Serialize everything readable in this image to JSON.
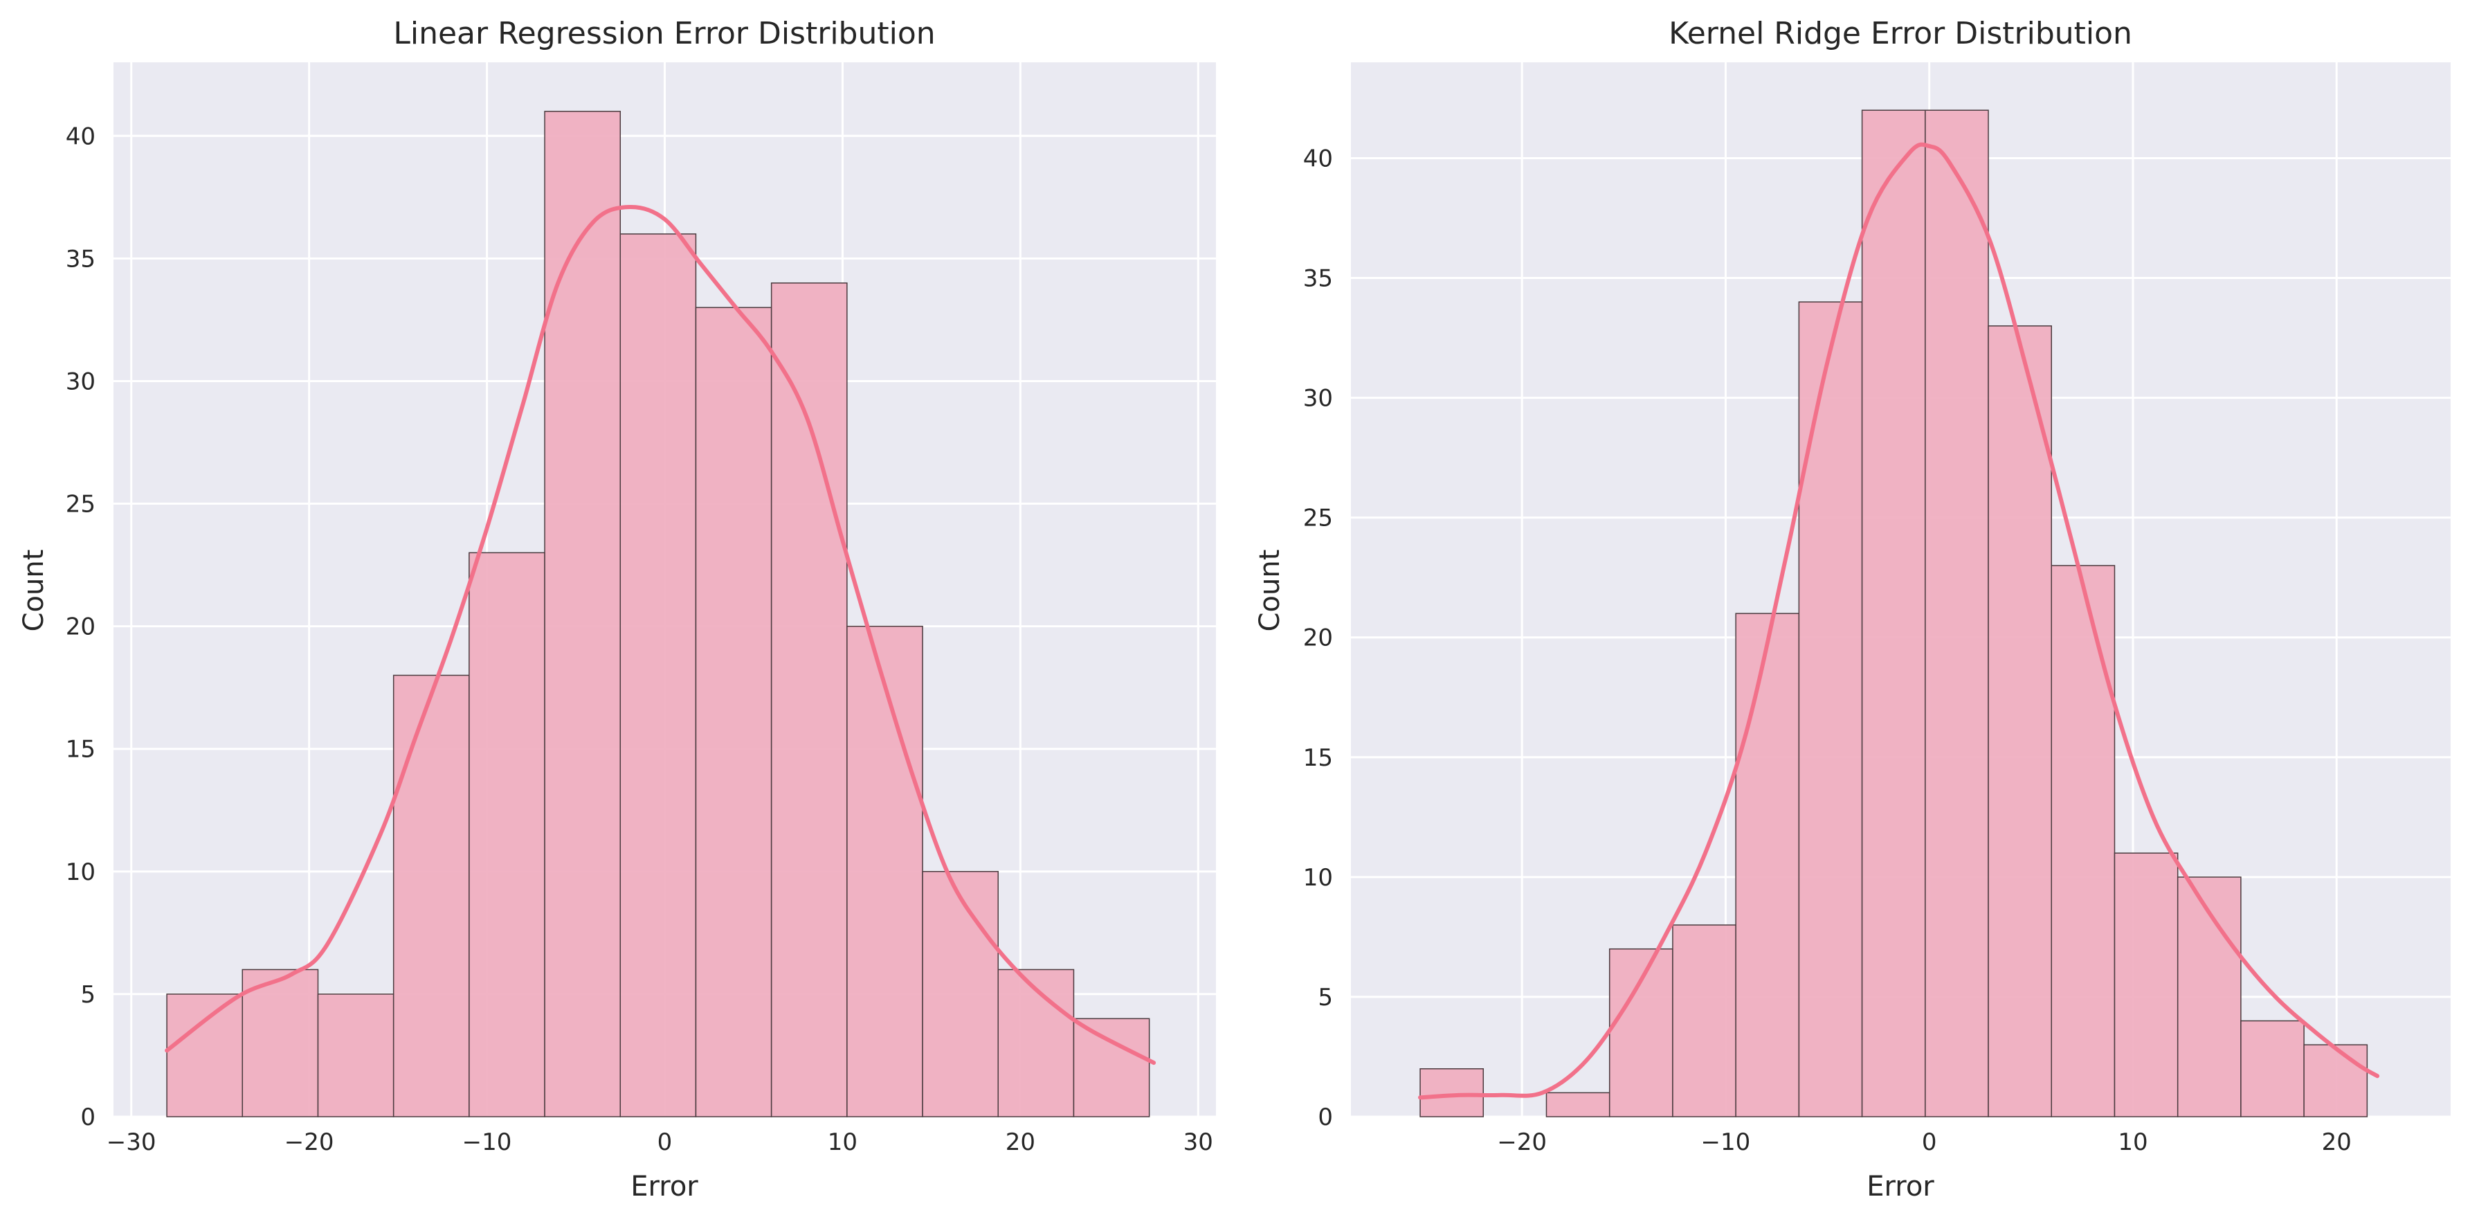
{
  "chart_data": [
    {
      "type": "bar",
      "subtype": "histogram_with_kde",
      "title": "Linear Regression Error Distribution",
      "xlabel": "Error",
      "ylabel": "Count",
      "xlim": [
        -31,
        31
      ],
      "ylim": [
        0,
        43
      ],
      "xticks": [
        -30,
        -20,
        -10,
        0,
        10,
        20,
        30
      ],
      "xtick_labels": [
        "−30",
        "−20",
        "−10",
        "0",
        "10",
        "20",
        "30"
      ],
      "yticks": [
        0,
        5,
        10,
        15,
        20,
        25,
        30,
        35,
        40
      ],
      "ytick_labels": [
        "0",
        "5",
        "10",
        "15",
        "20",
        "25",
        "30",
        "35",
        "40"
      ],
      "bin_edges": [
        -28,
        -23.75,
        -19.5,
        -15.25,
        -11,
        -6.75,
        -2.5,
        1.75,
        6,
        10.25,
        14.5,
        18.75,
        23,
        27.25
      ],
      "counts": [
        5,
        6,
        5,
        18,
        23,
        41,
        36,
        33,
        34,
        20,
        10,
        6,
        4
      ],
      "kde": {
        "x": [
          -28,
          -24,
          -21,
          -19,
          -16,
          -14,
          -12,
          -10,
          -8,
          -6,
          -4,
          -2,
          0,
          2,
          4,
          6,
          8,
          10,
          12,
          14,
          16,
          18,
          20,
          22,
          24,
          27.5
        ],
        "y": [
          2.7,
          4.9,
          5.8,
          7.0,
          11.5,
          15.5,
          19.5,
          24.0,
          29.0,
          34.0,
          36.5,
          37.1,
          36.6,
          34.8,
          33.0,
          31.2,
          28.5,
          23.5,
          18.5,
          13.8,
          9.8,
          7.5,
          5.8,
          4.5,
          3.5,
          2.2
        ]
      },
      "grid": true,
      "colors": {
        "bar_fill": "#f0adbf",
        "bar_edge": "#4a3a3e",
        "kde_line": "#f2718a",
        "axes_bg": "#eaeaf2",
        "grid": "#ffffff"
      }
    },
    {
      "type": "bar",
      "subtype": "histogram_with_kde",
      "title": "Kernel Ridge Error Distribution",
      "xlabel": "Error",
      "ylabel": "Count",
      "xlim": [
        -28.4,
        25.6
      ],
      "ylim": [
        0,
        44
      ],
      "xticks": [
        -20,
        -10,
        0,
        10,
        20
      ],
      "xtick_labels": [
        "−20",
        "−10",
        "0",
        "10",
        "20"
      ],
      "yticks": [
        0,
        5,
        10,
        15,
        20,
        25,
        30,
        35,
        40
      ],
      "ytick_labels": [
        "0",
        "5",
        "10",
        "15",
        "20",
        "25",
        "30",
        "35",
        "40"
      ],
      "bin_edges": [
        -25,
        -21.9,
        -18.8,
        -15.7,
        -12.6,
        -9.5,
        -6.4,
        -3.3,
        -0.2,
        2.9,
        6.0,
        9.1,
        12.2,
        15.3,
        18.4,
        21.5
      ],
      "counts": [
        2,
        0,
        1,
        7,
        8,
        21,
        34,
        42,
        42,
        33,
        23,
        11,
        10,
        4,
        3
      ],
      "kde": {
        "x": [
          -25,
          -23,
          -21,
          -19,
          -17,
          -15,
          -13,
          -11,
          -9,
          -7,
          -5,
          -3,
          -1,
          0,
          1,
          3,
          5,
          7,
          9,
          11,
          13,
          15,
          17,
          19,
          21,
          22
        ],
        "y": [
          0.8,
          0.9,
          0.9,
          1.0,
          2.2,
          4.5,
          7.5,
          11.0,
          16.0,
          23.5,
          31.5,
          37.5,
          40.2,
          40.5,
          39.8,
          36.5,
          30.5,
          24.0,
          17.5,
          12.5,
          9.5,
          7.0,
          5.0,
          3.5,
          2.2,
          1.7
        ]
      },
      "grid": true,
      "colors": {
        "bar_fill": "#f0adbf",
        "bar_edge": "#4a3a3e",
        "kde_line": "#f2718a",
        "axes_bg": "#eaeaf2",
        "grid": "#ffffff"
      }
    }
  ]
}
